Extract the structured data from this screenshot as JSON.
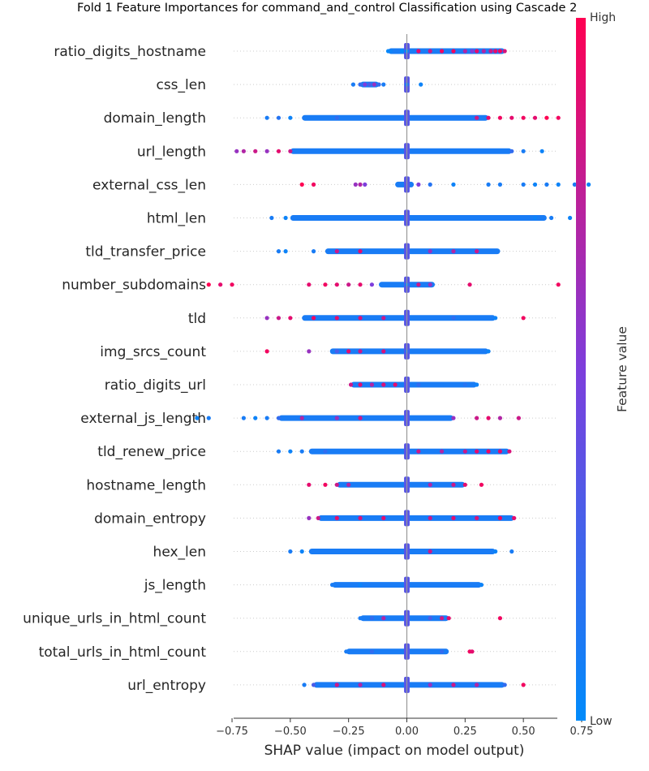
{
  "chart_data": {
    "type": "scatter",
    "subtype": "shap-beeswarm",
    "title": "Fold 1 Feature Importances for command_and_control Classification using Cascade 2",
    "xlabel": "SHAP value (impact on model output)",
    "ylabel": "",
    "xlim": [
      -0.9,
      0.87
    ],
    "xticks": [
      -0.75,
      -0.5,
      -0.25,
      0.0,
      0.25,
      0.5,
      0.75
    ],
    "xtick_labels": [
      "−0.75",
      "−0.50",
      "−0.25",
      "0.00",
      "0.25",
      "0.50",
      "0.75"
    ],
    "grid": false,
    "zero_line": true,
    "colorbar": {
      "label": "Feature value",
      "high_label": "High",
      "low_label": "Low",
      "high_color": "#ff0052",
      "mid_color": "#7d3edc",
      "low_color": "#008bfb"
    },
    "features": [
      {
        "name": "ratio_digits_hostname",
        "min": -0.08,
        "max": 0.42,
        "core": [
          -0.08,
          0.42
        ],
        "points": [
          [
            -0.08,
            0.02
          ],
          [
            -0.07,
            0.05
          ],
          [
            -0.05,
            0.1
          ],
          [
            -0.02,
            0.0
          ],
          [
            0.0,
            0.0
          ],
          [
            0.05,
            0.9
          ],
          [
            0.1,
            0.8
          ],
          [
            0.15,
            0.95
          ],
          [
            0.2,
            0.95
          ],
          [
            0.25,
            0.7
          ],
          [
            0.28,
            0.5
          ],
          [
            0.3,
            0.9
          ],
          [
            0.33,
            0.7
          ],
          [
            0.36,
            0.8
          ],
          [
            0.38,
            0.9
          ],
          [
            0.4,
            0.95
          ],
          [
            0.42,
            0.85
          ]
        ]
      },
      {
        "name": "css_len",
        "min": -0.23,
        "max": 0.06,
        "core": [
          -0.2,
          -0.12
        ],
        "points": [
          [
            -0.23,
            0.1
          ],
          [
            -0.2,
            0.2
          ],
          [
            -0.18,
            0.5
          ],
          [
            -0.16,
            0.3
          ],
          [
            -0.14,
            0.6
          ],
          [
            -0.12,
            0.2
          ],
          [
            -0.1,
            0.1
          ],
          [
            0.0,
            0.1
          ],
          [
            0.06,
            0.05
          ]
        ]
      },
      {
        "name": "domain_length",
        "min": -0.6,
        "max": 0.65,
        "core": [
          -0.45,
          0.35
        ],
        "points": [
          [
            -0.6,
            0.1
          ],
          [
            -0.55,
            0.15
          ],
          [
            -0.5,
            0.05
          ],
          [
            -0.3,
            0.2
          ],
          [
            0.3,
            0.8
          ],
          [
            0.35,
            0.9
          ],
          [
            0.4,
            0.95
          ],
          [
            0.45,
            0.9
          ],
          [
            0.5,
            0.95
          ],
          [
            0.55,
            0.9
          ],
          [
            0.6,
            1.0
          ],
          [
            0.65,
            0.95
          ]
        ]
      },
      {
        "name": "url_length",
        "min": -0.73,
        "max": 0.58,
        "core": [
          -0.5,
          0.45
        ],
        "points": [
          [
            -0.73,
            0.6
          ],
          [
            -0.7,
            0.7
          ],
          [
            -0.65,
            0.8
          ],
          [
            -0.6,
            0.6
          ],
          [
            -0.55,
            0.9
          ],
          [
            -0.5,
            0.8
          ],
          [
            0.45,
            0.2
          ],
          [
            0.5,
            0.1
          ],
          [
            0.58,
            0.05
          ]
        ]
      },
      {
        "name": "external_css_len",
        "min": -0.45,
        "max": 0.78,
        "core": [
          -0.05,
          0.03
        ],
        "points": [
          [
            -0.45,
            1.0
          ],
          [
            -0.4,
            0.95
          ],
          [
            -0.22,
            0.6
          ],
          [
            -0.2,
            0.7
          ],
          [
            -0.18,
            0.5
          ],
          [
            -0.02,
            0.1
          ],
          [
            0.05,
            0.5
          ],
          [
            0.1,
            0.15
          ],
          [
            0.2,
            0.05
          ],
          [
            0.35,
            0.1
          ],
          [
            0.4,
            0.1
          ],
          [
            0.5,
            0.1
          ],
          [
            0.55,
            0.05
          ],
          [
            0.6,
            0.1
          ],
          [
            0.65,
            0.05
          ],
          [
            0.72,
            0.1
          ],
          [
            0.78,
            0.05
          ]
        ]
      },
      {
        "name": "html_len",
        "min": -0.58,
        "max": 0.7,
        "core": [
          -0.5,
          0.6
        ],
        "points": [
          [
            -0.58,
            0.1
          ],
          [
            -0.52,
            0.05
          ],
          [
            0.55,
            0.05
          ],
          [
            0.62,
            0.1
          ],
          [
            0.7,
            0.05
          ]
        ]
      },
      {
        "name": "tld_transfer_price",
        "min": -0.55,
        "max": 0.4,
        "core": [
          -0.35,
          0.4
        ],
        "points": [
          [
            -0.55,
            0.1
          ],
          [
            -0.52,
            0.05
          ],
          [
            -0.4,
            0.1
          ],
          [
            -0.3,
            0.8
          ],
          [
            -0.2,
            0.9
          ],
          [
            0.1,
            0.6
          ],
          [
            0.2,
            0.7
          ],
          [
            0.3,
            0.8
          ]
        ]
      },
      {
        "name": "number_subdomains",
        "min": -0.85,
        "max": 0.65,
        "core": [
          -0.12,
          0.12
        ],
        "points": [
          [
            -0.85,
            1.0
          ],
          [
            -0.8,
            0.9
          ],
          [
            -0.75,
            0.95
          ],
          [
            -0.42,
            0.9
          ],
          [
            -0.35,
            0.95
          ],
          [
            -0.3,
            0.9
          ],
          [
            -0.25,
            0.8
          ],
          [
            -0.2,
            0.9
          ],
          [
            -0.15,
            0.5
          ],
          [
            0.0,
            0.1
          ],
          [
            0.05,
            0.8
          ],
          [
            0.1,
            0.6
          ],
          [
            0.27,
            0.9
          ],
          [
            0.65,
            0.95
          ]
        ]
      },
      {
        "name": "tld",
        "min": -0.6,
        "max": 0.5,
        "core": [
          -0.45,
          0.38
        ],
        "points": [
          [
            -0.6,
            0.6
          ],
          [
            -0.55,
            0.8
          ],
          [
            -0.5,
            0.9
          ],
          [
            -0.4,
            0.95
          ],
          [
            -0.3,
            0.9
          ],
          [
            -0.2,
            0.85
          ],
          [
            -0.1,
            0.8
          ],
          [
            0.2,
            0.2
          ],
          [
            0.3,
            0.1
          ],
          [
            0.38,
            0.05
          ],
          [
            0.5,
            0.95
          ]
        ]
      },
      {
        "name": "img_srcs_count",
        "min": -0.6,
        "max": 0.35,
        "core": [
          -0.33,
          0.35
        ],
        "points": [
          [
            -0.6,
            0.95
          ],
          [
            -0.42,
            0.6
          ],
          [
            -0.3,
            0.3
          ],
          [
            -0.25,
            0.9
          ],
          [
            -0.2,
            0.8
          ],
          [
            -0.1,
            0.85
          ],
          [
            0.0,
            0.2
          ],
          [
            0.2,
            0.1
          ],
          [
            0.35,
            0.05
          ]
        ]
      },
      {
        "name": "ratio_digits_url",
        "min": -0.24,
        "max": 0.3,
        "core": [
          -0.24,
          0.3
        ],
        "points": [
          [
            -0.24,
            0.8
          ],
          [
            -0.2,
            0.9
          ],
          [
            -0.15,
            0.7
          ],
          [
            -0.1,
            0.85
          ],
          [
            -0.05,
            0.9
          ],
          [
            0.05,
            0.2
          ],
          [
            0.15,
            0.1
          ],
          [
            0.25,
            0.15
          ],
          [
            0.3,
            0.05
          ]
        ]
      },
      {
        "name": "external_js_length",
        "min": -0.9,
        "max": 0.5,
        "core": [
          -0.55,
          0.2
        ],
        "points": [
          [
            -0.9,
            0.05
          ],
          [
            -0.85,
            0.1
          ],
          [
            -0.7,
            0.1
          ],
          [
            -0.65,
            0.05
          ],
          [
            -0.6,
            0.1
          ],
          [
            -0.55,
            0.2
          ],
          [
            -0.45,
            0.7
          ],
          [
            -0.3,
            0.6
          ],
          [
            -0.2,
            0.8
          ],
          [
            0.2,
            0.6
          ],
          [
            0.3,
            0.8
          ],
          [
            0.35,
            0.9
          ],
          [
            0.4,
            0.7
          ],
          [
            0.48,
            0.8
          ]
        ]
      },
      {
        "name": "tld_renew_price",
        "min": -0.55,
        "max": 0.44,
        "core": [
          -0.42,
          0.44
        ],
        "points": [
          [
            -0.55,
            0.1
          ],
          [
            -0.5,
            0.05
          ],
          [
            -0.45,
            0.1
          ],
          [
            -0.35,
            0.2
          ],
          [
            0.05,
            0.8
          ],
          [
            0.15,
            0.7
          ],
          [
            0.25,
            0.8
          ],
          [
            0.3,
            0.9
          ],
          [
            0.35,
            0.95
          ],
          [
            0.4,
            0.9
          ],
          [
            0.44,
            0.85
          ]
        ]
      },
      {
        "name": "hostname_length",
        "min": -0.42,
        "max": 0.32,
        "core": [
          -0.3,
          0.25
        ],
        "points": [
          [
            -0.42,
            0.9
          ],
          [
            -0.35,
            0.95
          ],
          [
            -0.3,
            0.8
          ],
          [
            -0.25,
            0.7
          ],
          [
            0.1,
            0.7
          ],
          [
            0.2,
            0.8
          ],
          [
            0.25,
            0.9
          ],
          [
            0.32,
            0.95
          ]
        ]
      },
      {
        "name": "domain_entropy",
        "min": -0.42,
        "max": 0.46,
        "core": [
          -0.38,
          0.46
        ],
        "points": [
          [
            -0.42,
            0.6
          ],
          [
            -0.38,
            0.8
          ],
          [
            -0.3,
            0.9
          ],
          [
            -0.2,
            0.85
          ],
          [
            -0.1,
            0.9
          ],
          [
            0.1,
            0.8
          ],
          [
            0.2,
            0.9
          ],
          [
            0.3,
            0.85
          ],
          [
            0.4,
            0.95
          ],
          [
            0.46,
            0.9
          ]
        ]
      },
      {
        "name": "hex_len",
        "min": -0.5,
        "max": 0.45,
        "core": [
          -0.42,
          0.38
        ],
        "points": [
          [
            -0.5,
            0.1
          ],
          [
            -0.45,
            0.05
          ],
          [
            0.1,
            0.8
          ],
          [
            0.25,
            0.1
          ],
          [
            0.38,
            0.05
          ],
          [
            0.45,
            0.1
          ]
        ]
      },
      {
        "name": "js_length",
        "min": -0.32,
        "max": 0.32,
        "core": [
          -0.32,
          0.32
        ],
        "points": [
          [
            -0.32,
            0.1
          ],
          [
            -0.2,
            0.05
          ],
          [
            0.2,
            0.1
          ],
          [
            0.32,
            0.05
          ]
        ]
      },
      {
        "name": "unique_urls_in_html_count",
        "min": -0.2,
        "max": 0.4,
        "core": [
          -0.2,
          0.18
        ],
        "points": [
          [
            -0.2,
            0.1
          ],
          [
            -0.15,
            0.2
          ],
          [
            -0.1,
            0.7
          ],
          [
            0.1,
            0.3
          ],
          [
            0.15,
            0.8
          ],
          [
            0.18,
            0.9
          ],
          [
            0.4,
            0.95
          ]
        ]
      },
      {
        "name": "total_urls_in_html_count",
        "min": -0.26,
        "max": 0.28,
        "core": [
          -0.26,
          0.18
        ],
        "points": [
          [
            -0.26,
            0.1
          ],
          [
            -0.15,
            0.2
          ],
          [
            0.1,
            0.1
          ],
          [
            0.15,
            0.2
          ],
          [
            0.27,
            0.95
          ],
          [
            0.28,
            0.9
          ]
        ]
      },
      {
        "name": "url_entropy",
        "min": -0.44,
        "max": 0.5,
        "core": [
          -0.4,
          0.42
        ],
        "points": [
          [
            -0.44,
            0.1
          ],
          [
            -0.4,
            0.3
          ],
          [
            -0.3,
            0.8
          ],
          [
            -0.2,
            0.7
          ],
          [
            -0.1,
            0.85
          ],
          [
            0.1,
            0.6
          ],
          [
            0.2,
            0.8
          ],
          [
            0.3,
            0.7
          ],
          [
            0.42,
            0.2
          ],
          [
            0.5,
            0.95
          ]
        ]
      }
    ]
  }
}
